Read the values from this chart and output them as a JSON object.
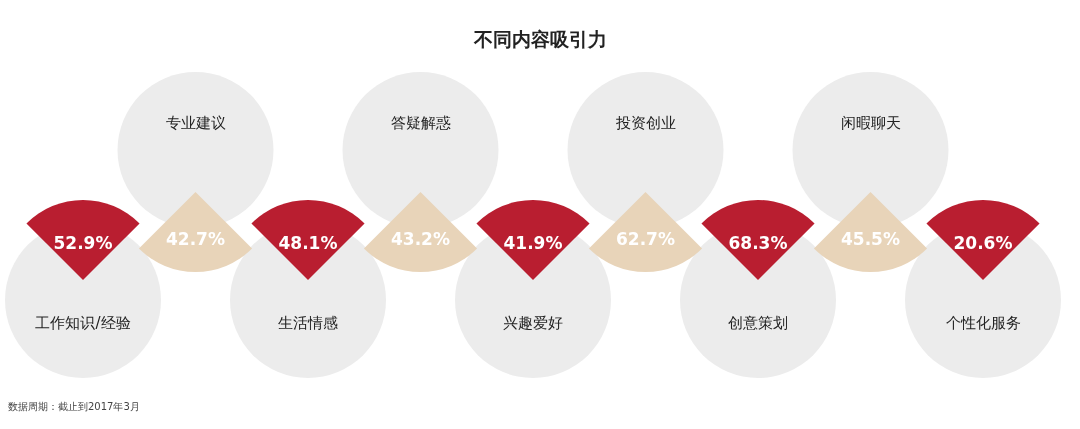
{
  "chart_data": {
    "type": "other",
    "title": "不同内容吸引力",
    "categories": [
      "工作知识/经验",
      "专业建议",
      "生活情感",
      "答疑解惑",
      "兴趣爱好",
      "投资创业",
      "创意策划",
      "闲暇聊天",
      "个性化服务"
    ],
    "values": [
      52.9,
      42.7,
      48.1,
      43.2,
      41.9,
      62.7,
      68.3,
      45.5,
      20.6
    ],
    "value_labels": [
      "52.9%",
      "42.7%",
      "48.1%",
      "43.2%",
      "41.9%",
      "62.7%",
      "68.3%",
      "45.5%",
      "20.6%"
    ],
    "colors": [
      "#b91e30",
      "#e8d4b9",
      "#b91e30",
      "#e8d4b9",
      "#b91e30",
      "#e8d4b9",
      "#b91e30",
      "#e8d4b9",
      "#b91e30"
    ],
    "annotations": [
      "数据周期：截止到2017年3月"
    ]
  }
}
